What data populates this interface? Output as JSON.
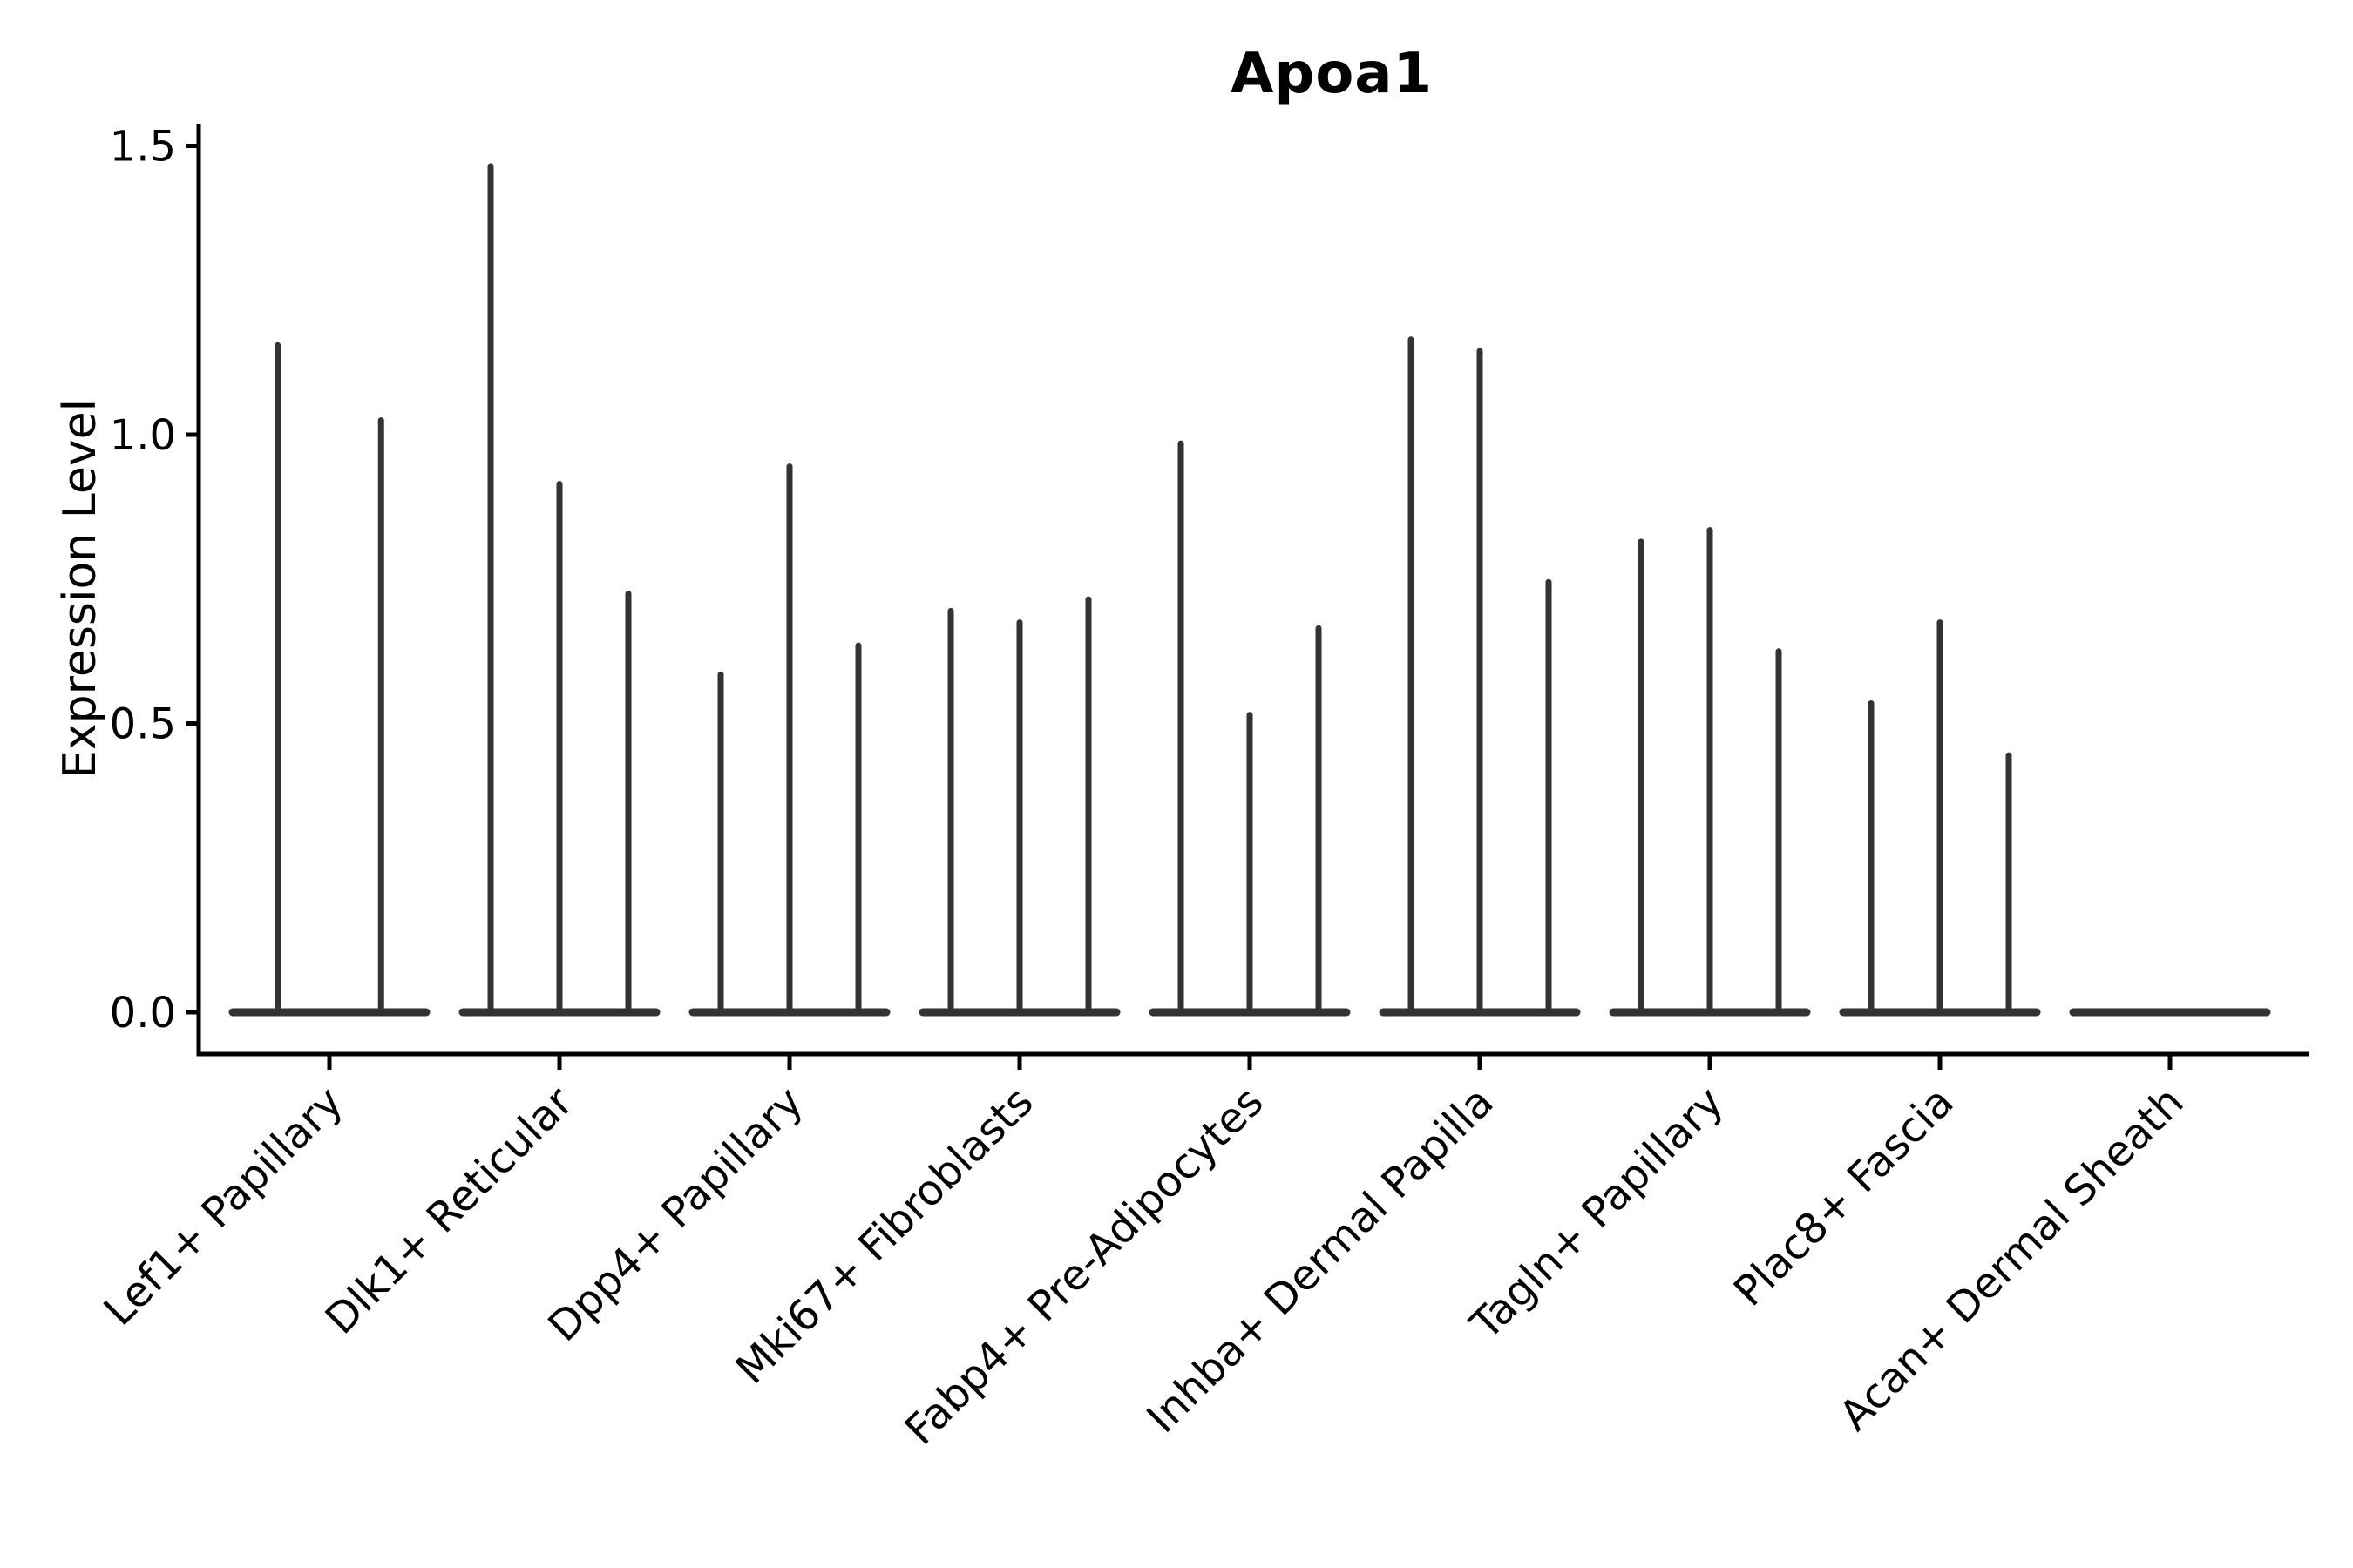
{
  "chart_data": {
    "type": "violin",
    "title": "Apoa1",
    "ylabel": "Expression Level",
    "xlabel": "",
    "yticks": [
      "0.0",
      "0.5",
      "1.0",
      "1.5"
    ],
    "ytick_values": [
      0.0,
      0.5,
      1.0,
      1.5
    ],
    "ylim": [
      -0.07,
      1.54
    ],
    "grid": false,
    "legend": "none",
    "categories": [
      "Lef1+ Papillary",
      "Dlk1+ Reticular",
      "Dpp4+ Papillary",
      "Mki67+ Fibroblasts",
      "Fabp4+ Pre-Adipocytes",
      "Inhba+ Dermal Papilla",
      "Tagln+ Papillary",
      "Plac8+ Fascia",
      "Acan+ Dermal Sheath"
    ],
    "groups": [
      {
        "category": "Lef1+ Papillary",
        "violin_max": [
          1.16,
          1.03
        ]
      },
      {
        "category": "Dlk1+ Reticular",
        "violin_max": [
          1.47,
          0.92,
          0.73
        ]
      },
      {
        "category": "Dpp4+ Papillary",
        "violin_max": [
          0.59,
          0.95,
          0.64
        ]
      },
      {
        "category": "Mki67+ Fibroblasts",
        "violin_max": [
          0.7,
          0.68,
          0.72
        ]
      },
      {
        "category": "Fabp4+ Pre-Adipocytes",
        "violin_max": [
          0.99,
          0.52,
          0.67
        ]
      },
      {
        "category": "Inhba+ Dermal Papilla",
        "violin_max": [
          1.17,
          1.15,
          0.75
        ]
      },
      {
        "category": "Tagln+ Papillary",
        "violin_max": [
          0.82,
          0.84,
          0.63
        ]
      },
      {
        "category": "Plac8+ Fascia",
        "violin_max": [
          0.54,
          0.68,
          0.45
        ]
      },
      {
        "category": "Acan+ Dermal Sheath",
        "violin_max": [
          0.0,
          0.0,
          0.0
        ]
      }
    ],
    "violin_color": "#333333",
    "axis_color": "#000000",
    "text_color": "#000000",
    "background_color": "#ffffff"
  }
}
